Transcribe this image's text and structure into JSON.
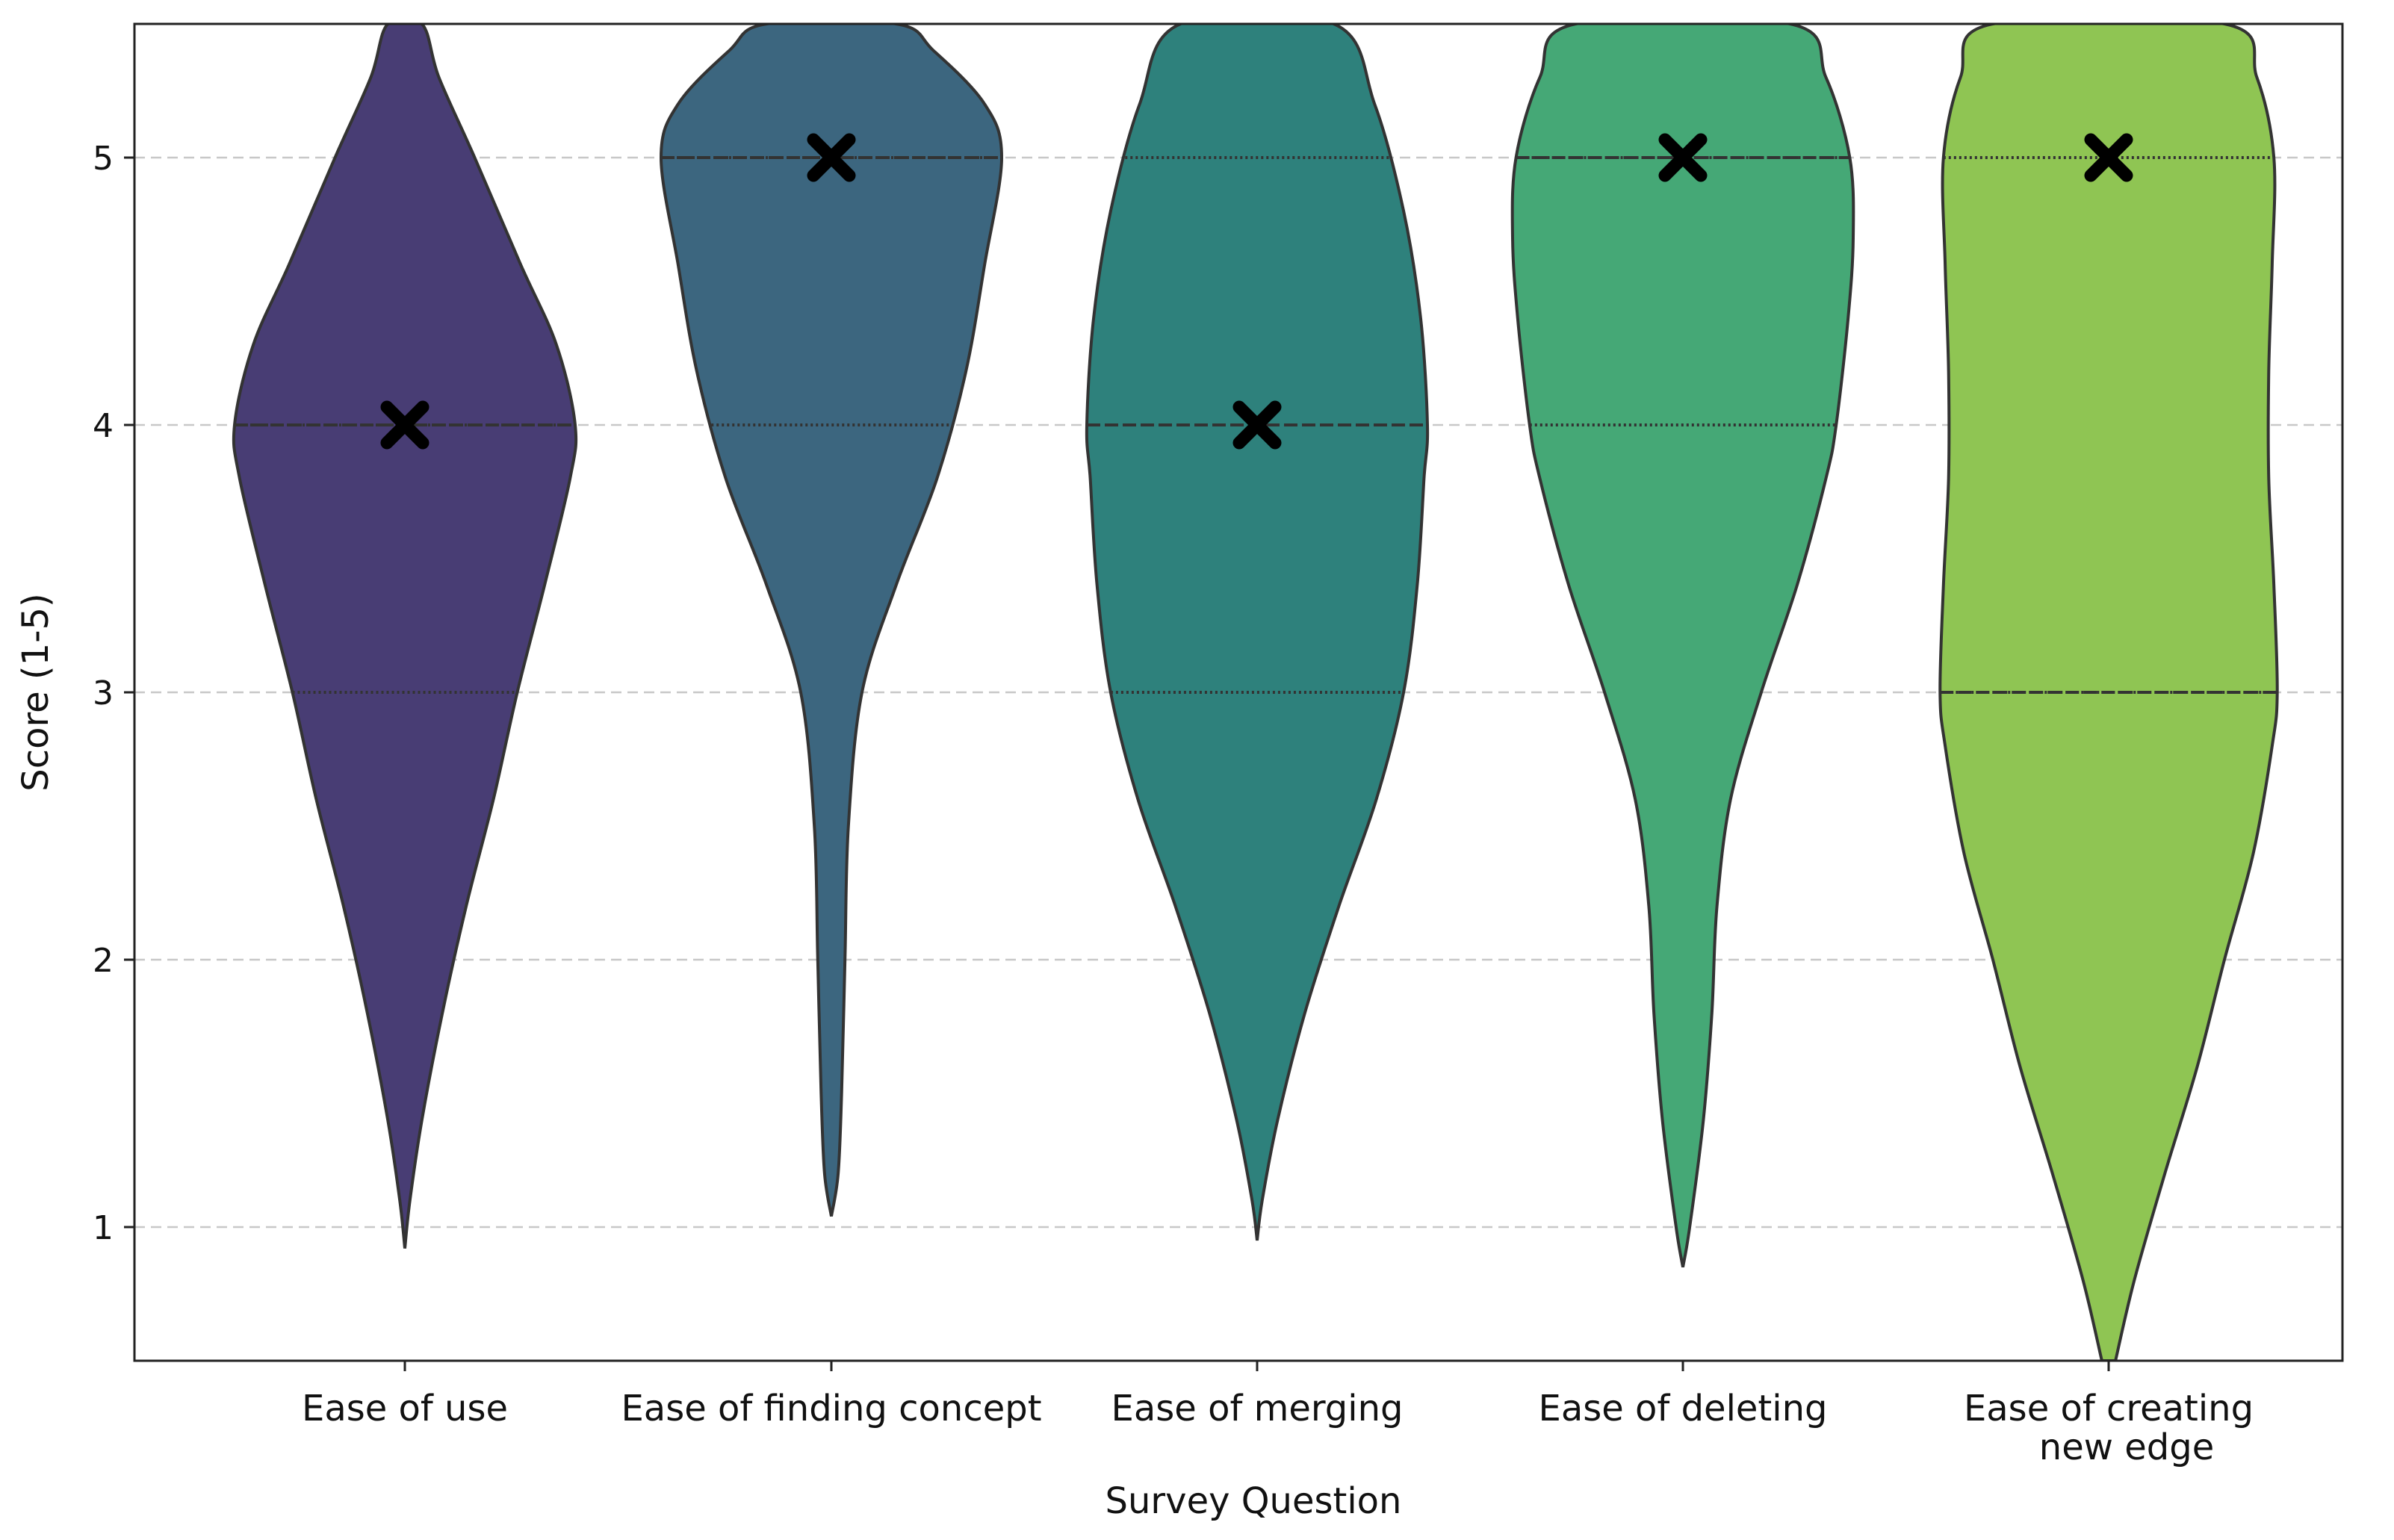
{
  "chart_data": {
    "type": "violin",
    "title": "",
    "xlabel": "Survey Question",
    "ylabel": "Score (1-5)",
    "ylim": [
      0.5,
      5.5
    ],
    "yticks": [
      1,
      2,
      3,
      4,
      5
    ],
    "grid": "y-dashed",
    "marker_symbol": "X",
    "categories": [
      {
        "label_lines": [
          "Ease of use"
        ],
        "color": "#483d74",
        "min": 0.92,
        "max": 5.5,
        "q1": 3.0,
        "median": 4.0,
        "q3": 4.0,
        "marker": 4,
        "density": [
          [
            0.92,
            0.0
          ],
          [
            1.1,
            0.03
          ],
          [
            1.4,
            0.1
          ],
          [
            1.8,
            0.22
          ],
          [
            2.2,
            0.36
          ],
          [
            2.6,
            0.52
          ],
          [
            3.0,
            0.66
          ],
          [
            3.4,
            0.82
          ],
          [
            3.8,
            0.97
          ],
          [
            4.0,
            1.0
          ],
          [
            4.3,
            0.89
          ],
          [
            4.6,
            0.68
          ],
          [
            5.0,
            0.41
          ],
          [
            5.3,
            0.2
          ],
          [
            5.5,
            0.1
          ]
        ]
      },
      {
        "label_lines": [
          "Ease of finding concept"
        ],
        "color": "#3c667f",
        "min": 1.04,
        "max": 5.5,
        "q1": 4.0,
        "median": 5.0,
        "q3": 5.0,
        "marker": 5,
        "density": [
          [
            1.04,
            0.0
          ],
          [
            1.2,
            0.04
          ],
          [
            1.5,
            0.06
          ],
          [
            2.0,
            0.08
          ],
          [
            2.5,
            0.1
          ],
          [
            3.0,
            0.18
          ],
          [
            3.4,
            0.38
          ],
          [
            3.8,
            0.62
          ],
          [
            4.2,
            0.79
          ],
          [
            4.6,
            0.9
          ],
          [
            5.0,
            1.0
          ],
          [
            5.2,
            0.9
          ],
          [
            5.4,
            0.6
          ],
          [
            5.5,
            0.38
          ]
        ]
      },
      {
        "label_lines": [
          "Ease of merging"
        ],
        "color": "#2e817c",
        "min": 0.95,
        "max": 5.5,
        "q1": 3.0,
        "median": 4.0,
        "q3": 5.0,
        "marker": 4,
        "density": [
          [
            0.95,
            0.0
          ],
          [
            1.1,
            0.03
          ],
          [
            1.4,
            0.12
          ],
          [
            1.8,
            0.28
          ],
          [
            2.2,
            0.48
          ],
          [
            2.6,
            0.7
          ],
          [
            3.0,
            0.86
          ],
          [
            3.4,
            0.94
          ],
          [
            3.8,
            0.98
          ],
          [
            4.0,
            1.0
          ],
          [
            4.4,
            0.96
          ],
          [
            4.8,
            0.86
          ],
          [
            5.2,
            0.69
          ],
          [
            5.5,
            0.45
          ]
        ]
      },
      {
        "label_lines": [
          "Ease of deleting"
        ],
        "color": "#45a876",
        "min": 0.85,
        "max": 5.5,
        "q1": 4.0,
        "median": 5.0,
        "q3": 5.0,
        "marker": 5,
        "density": [
          [
            0.85,
            0.0
          ],
          [
            1.0,
            0.04
          ],
          [
            1.4,
            0.12
          ],
          [
            1.8,
            0.17
          ],
          [
            2.2,
            0.2
          ],
          [
            2.6,
            0.28
          ],
          [
            3.0,
            0.46
          ],
          [
            3.4,
            0.67
          ],
          [
            3.8,
            0.84
          ],
          [
            4.0,
            0.9
          ],
          [
            4.4,
            0.97
          ],
          [
            4.7,
            1.0
          ],
          [
            5.0,
            0.98
          ],
          [
            5.3,
            0.84
          ],
          [
            5.5,
            0.63
          ]
        ]
      },
      {
        "label_lines": [
          "Ease of creating",
          "new edge"
        ],
        "color": "#8fc553",
        "min": 0.5,
        "max": 5.5,
        "q1": 3.0,
        "median": 3.0,
        "q3": 5.0,
        "marker": 5,
        "density": [
          [
            0.5,
            0.04
          ],
          [
            0.8,
            0.15
          ],
          [
            1.2,
            0.33
          ],
          [
            1.6,
            0.52
          ],
          [
            2.0,
            0.68
          ],
          [
            2.4,
            0.85
          ],
          [
            2.8,
            0.96
          ],
          [
            3.0,
            0.99
          ],
          [
            3.4,
            0.97
          ],
          [
            3.8,
            0.94
          ],
          [
            4.2,
            0.94
          ],
          [
            4.6,
            0.96
          ],
          [
            5.0,
            0.97
          ],
          [
            5.3,
            0.87
          ],
          [
            5.5,
            0.68
          ]
        ]
      }
    ]
  }
}
